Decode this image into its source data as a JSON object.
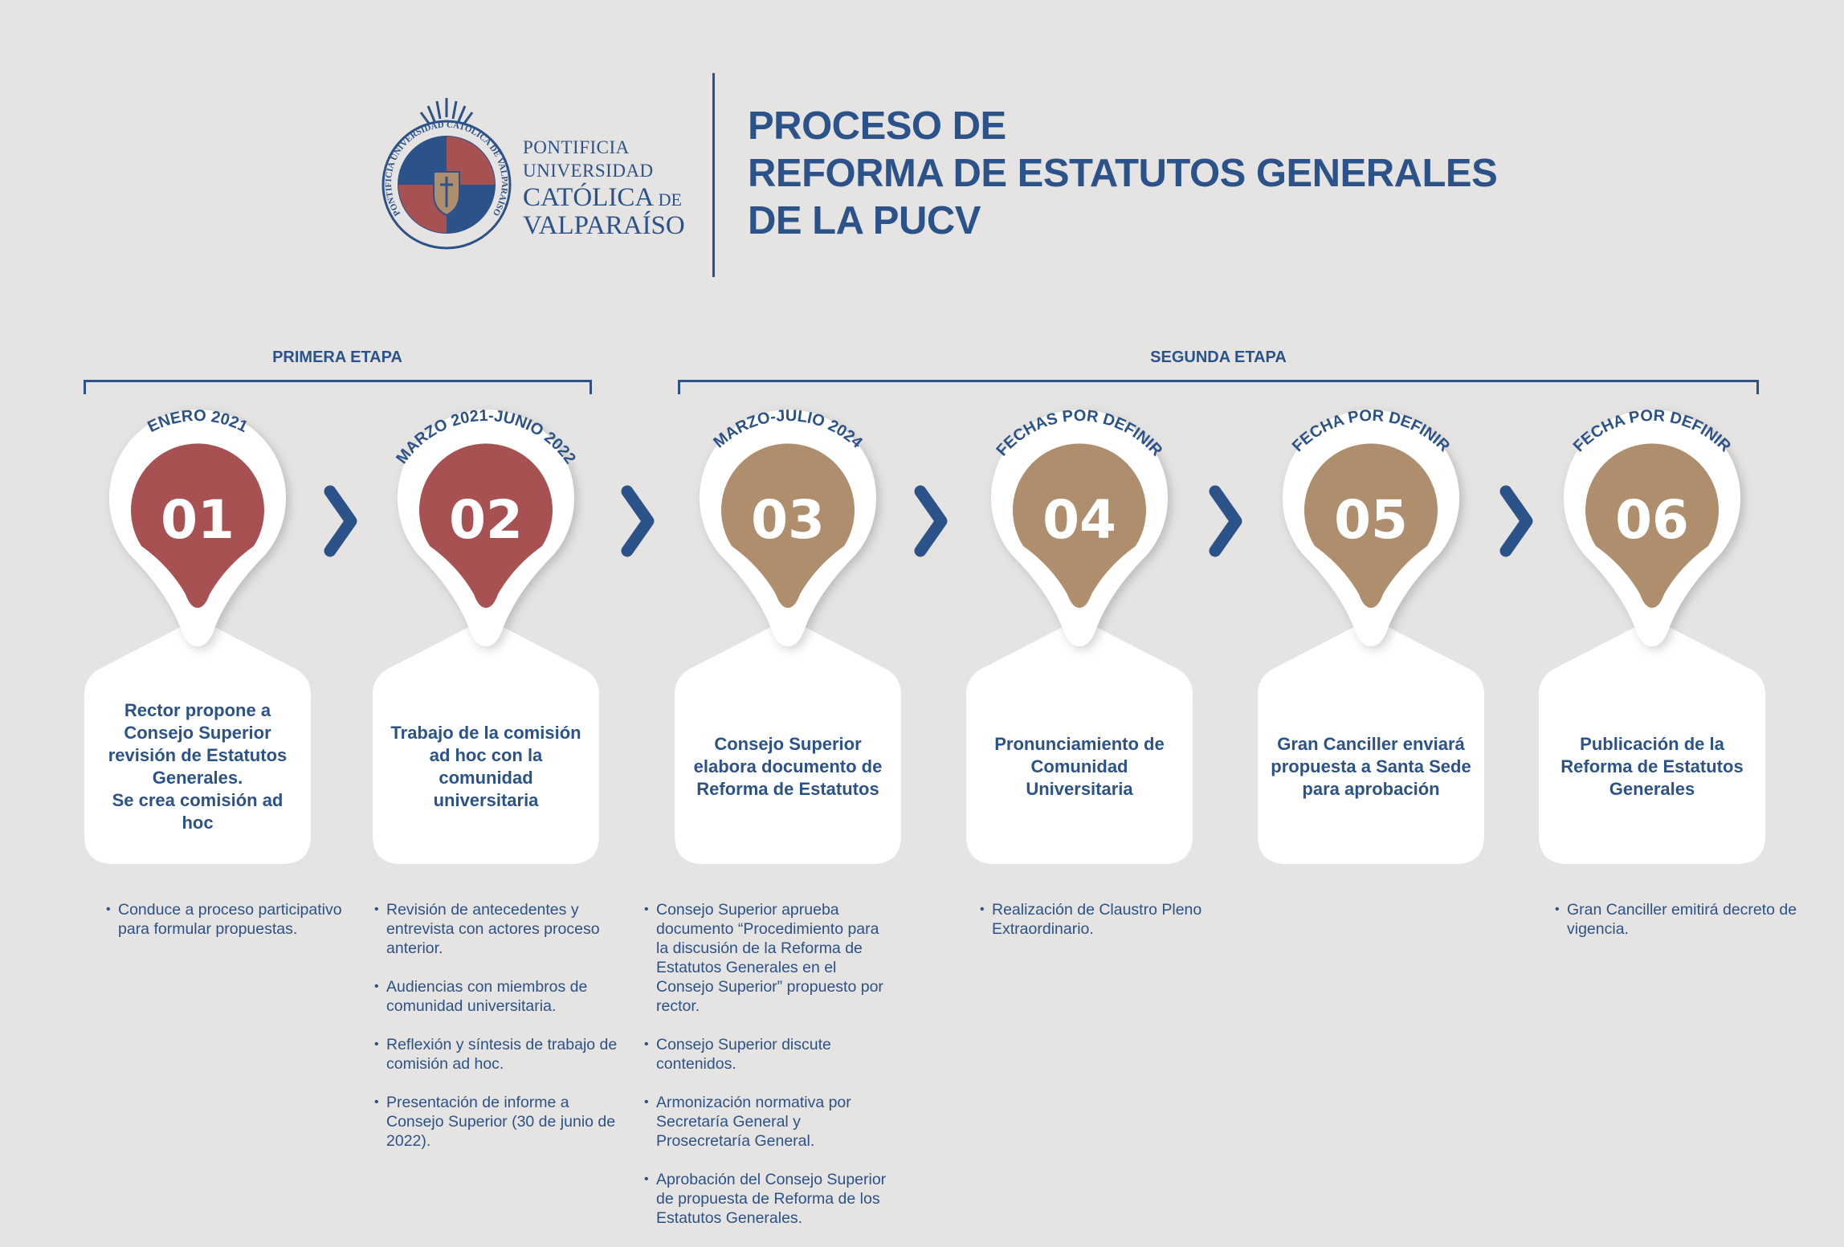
{
  "colors": {
    "background": "#E5E4E2",
    "blue": "#2B5289",
    "red": "#A85153",
    "tan": "#AE8E6C",
    "white": "#FFFFFF"
  },
  "logo": {
    "seal_text": "PONTIFICIA UNIVERSIDAD CATÓLICA DE VALPARAÍSO",
    "line1": "PONTIFICIA",
    "line2": "UNIVERSIDAD",
    "line3": "CATÓLICA",
    "line3_small": " DE",
    "line4": "VALPARAÍSO"
  },
  "title": {
    "line1": "PROCESO DE",
    "line2": "REFORMA DE ESTATUTOS GENERALES",
    "line3": "DE LA PUCV"
  },
  "stages": [
    {
      "label": "PRIMERA ETAPA"
    },
    {
      "label": "SEGUNDA ETAPA"
    }
  ],
  "steps": [
    {
      "number": "01",
      "date": "ENERO 2021",
      "color": "red",
      "stage": 1,
      "title": "Rector propone a Consejo Superior revisión de Estatutos Generales.\nSe crea comisión ad hoc",
      "bullets": [
        "Conduce a proceso participativo para formular propuestas."
      ]
    },
    {
      "number": "02",
      "date": "MARZO 2021-JUNIO 2022",
      "color": "red",
      "stage": 1,
      "title": "Trabajo de la comisión ad hoc con la comunidad universitaria",
      "bullets": [
        "Revisión de antecedentes y entrevista con actores proceso anterior.",
        "Audiencias con miembros de comunidad universitaria.",
        "Reflexión y síntesis de trabajo de comisión ad hoc.",
        "Presentación de informe a Consejo Superior (30 de junio de 2022)."
      ]
    },
    {
      "number": "03",
      "date": "MARZO-JULIO 2024",
      "color": "tan",
      "stage": 2,
      "title": "Consejo Superior elabora documento de Reforma de Estatutos",
      "bullets": [
        "Consejo Superior aprueba documento “Procedimiento para la discusión de la Reforma de Estatutos Generales en el Consejo Superior” propuesto por rector.",
        "Consejo Superior discute contenidos.",
        "Armonización normativa por Secretaría General y Prosecretaría General.",
        "Aprobación del Consejo Superior de propuesta de Reforma de los Estatutos Generales."
      ]
    },
    {
      "number": "04",
      "date": "FECHAS POR DEFINIR",
      "color": "tan",
      "stage": 2,
      "title": "Pronunciamiento de Comunidad Universitaria",
      "bullets": [
        "Realización de Claustro Pleno Extraordinario."
      ]
    },
    {
      "number": "05",
      "date": "FECHA POR DEFINIR",
      "color": "tan",
      "stage": 2,
      "title": "Gran Canciller enviará propuesta a Santa Sede para aprobación",
      "bullets": []
    },
    {
      "number": "06",
      "date": "FECHA POR DEFINIR",
      "color": "tan",
      "stage": 2,
      "title": "Publicación de la Reforma de Estatutos Generales",
      "bullets": [
        "Gran Canciller emitirá decreto de vigencia."
      ]
    }
  ],
  "connector_icon": "chevron-right-icon"
}
